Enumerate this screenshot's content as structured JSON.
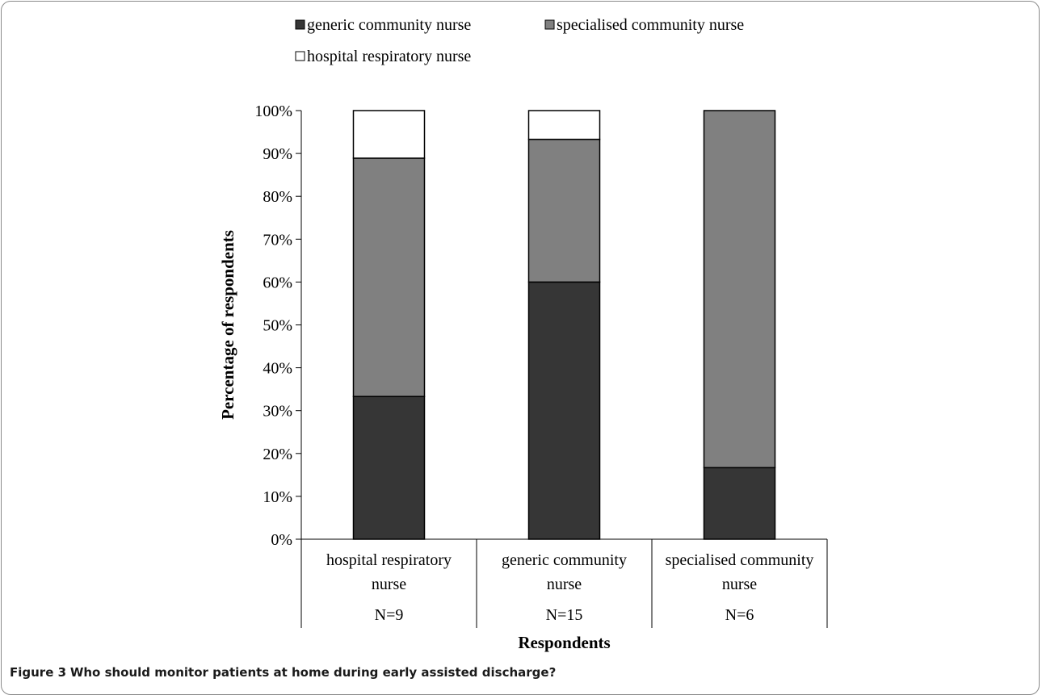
{
  "figure": {
    "caption_lead": "Figure 3",
    "caption_text": "Who should monitor patients at home during early assisted discharge?"
  },
  "chart_data": {
    "type": "bar",
    "stacked": true,
    "percent_stacked": true,
    "categories": [
      "hospital respiratory nurse",
      "generic community nurse",
      "specialised community nurse"
    ],
    "category_lines": [
      [
        "hospital respiratory",
        "nurse"
      ],
      [
        "generic community",
        "nurse"
      ],
      [
        "specialised community",
        "nurse"
      ]
    ],
    "category_n": [
      "N=9",
      "N=15",
      "N=6"
    ],
    "series": [
      {
        "name": "generic community nurse",
        "color": "#363636",
        "values": [
          33.3,
          60.0,
          16.7
        ]
      },
      {
        "name": "specialised community nurse",
        "color": "#808080",
        "values": [
          55.6,
          33.3,
          83.3
        ]
      },
      {
        "name": "hospital respiratory nurse",
        "color": "#ffffff",
        "values": [
          11.1,
          6.7,
          0
        ]
      }
    ],
    "ylim": [
      0,
      100
    ],
    "yticks": [
      "0%",
      "10%",
      "20%",
      "30%",
      "40%",
      "50%",
      "60%",
      "70%",
      "80%",
      "90%",
      "100%"
    ],
    "xlabel": "Respondents",
    "ylabel": "Percentage of respondents",
    "legend_position": "top",
    "grid": false
  }
}
